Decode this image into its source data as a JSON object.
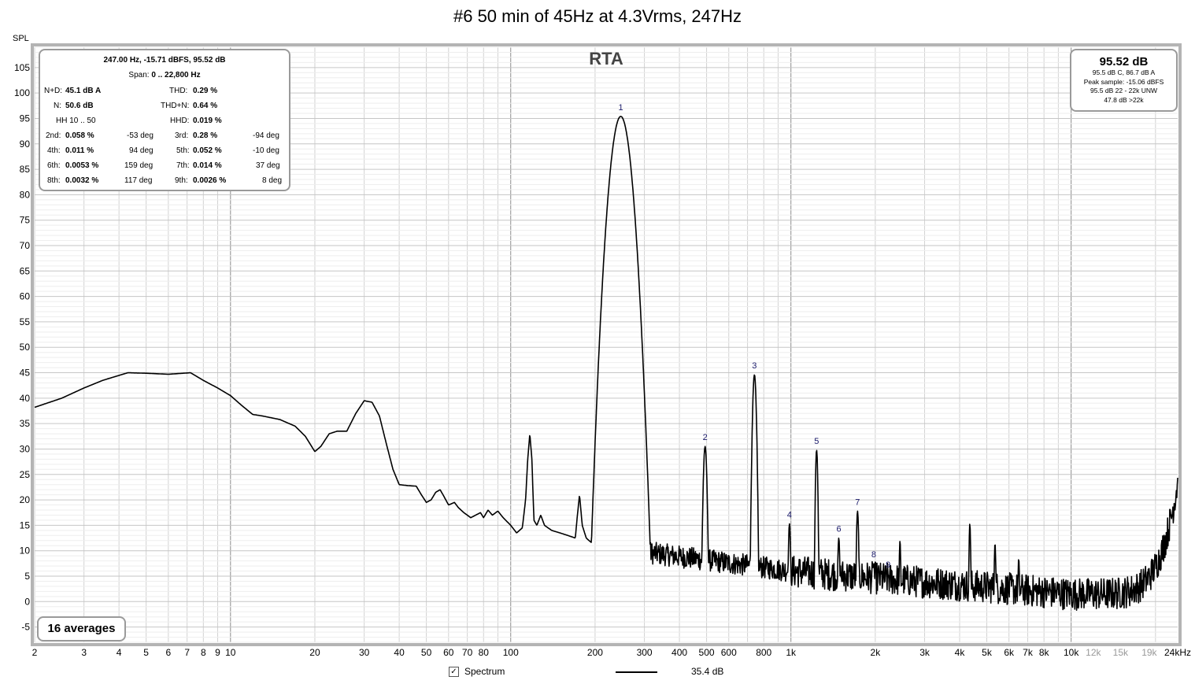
{
  "title": "#6 50 min of 45Hz at 4.3Vrms, 247Hz",
  "y_unit_label": "SPL",
  "rta_label": "RTA",
  "stats": {
    "header": "247.00 Hz, -15.71 dBFS, 95.52 dB",
    "span_label": "Span:",
    "span_value": "0 .. 22,800 Hz",
    "nd_label": "N+D:",
    "nd_value": "45.1 dB A",
    "thd_label": "THD:",
    "thd_value": "0.29 %",
    "n_label": "N:",
    "n_value": "50.6 dB",
    "thdn_label": "THD+N:",
    "thdn_value": "0.64 %",
    "hh_label": "HH 10 .. 50",
    "hhd_label": "HHD:",
    "hhd_value": "0.019 %",
    "harmonics": [
      {
        "label": "2nd:",
        "value": "0.058 %",
        "phase": "-53 deg"
      },
      {
        "label": "3rd:",
        "value": "0.28 %",
        "phase": "-94 deg"
      },
      {
        "label": "4th:",
        "value": "0.011 %",
        "phase": "94 deg"
      },
      {
        "label": "5th:",
        "value": "0.052 %",
        "phase": "-10 deg"
      },
      {
        "label": "6th:",
        "value": "0.0053 %",
        "phase": "159 deg"
      },
      {
        "label": "7th:",
        "value": "0.014 %",
        "phase": "37 deg"
      },
      {
        "label": "8th:",
        "value": "0.0032 %",
        "phase": "117 deg"
      },
      {
        "label": "9th:",
        "value": "0.0026 %",
        "phase": "8 deg"
      }
    ]
  },
  "level": {
    "main": "95.52 dB",
    "lines": [
      "95.5 dB C, 86.7 dB A",
      "Peak sample: -15.06 dBFS",
      "95.5 dB 22 - 22k UNW",
      "47.8 dB >22k"
    ]
  },
  "averages": "16 averages",
  "legend": {
    "checked": true,
    "checkmark": "✓",
    "name": "Spectrum",
    "value": "35.4 dB",
    "color": "#000000"
  },
  "chart_data": {
    "type": "line",
    "x_scale": "log",
    "xlim": [
      2,
      24000
    ],
    "ylim": [
      -8,
      109
    ],
    "x_ticks": [
      {
        "v": 2,
        "t": "2"
      },
      {
        "v": 3,
        "t": "3"
      },
      {
        "v": 4,
        "t": "4"
      },
      {
        "v": 5,
        "t": "5"
      },
      {
        "v": 6,
        "t": "6"
      },
      {
        "v": 7,
        "t": "7"
      },
      {
        "v": 8,
        "t": "8"
      },
      {
        "v": 9,
        "t": "9"
      },
      {
        "v": 10,
        "t": "10"
      },
      {
        "v": 20,
        "t": "20"
      },
      {
        "v": 30,
        "t": "30"
      },
      {
        "v": 40,
        "t": "40"
      },
      {
        "v": 50,
        "t": "50"
      },
      {
        "v": 60,
        "t": "60"
      },
      {
        "v": 70,
        "t": "70"
      },
      {
        "v": 80,
        "t": "80"
      },
      {
        "v": 100,
        "t": "100"
      },
      {
        "v": 200,
        "t": "200"
      },
      {
        "v": 300,
        "t": "300"
      },
      {
        "v": 400,
        "t": "400"
      },
      {
        "v": 500,
        "t": "500"
      },
      {
        "v": 600,
        "t": "600"
      },
      {
        "v": 800,
        "t": "800"
      },
      {
        "v": 1000,
        "t": "1k"
      },
      {
        "v": 2000,
        "t": "2k"
      },
      {
        "v": 3000,
        "t": "3k"
      },
      {
        "v": 4000,
        "t": "4k"
      },
      {
        "v": 5000,
        "t": "5k"
      },
      {
        "v": 6000,
        "t": "6k"
      },
      {
        "v": 7000,
        "t": "7k"
      },
      {
        "v": 8000,
        "t": "8k"
      },
      {
        "v": 10000,
        "t": "10k"
      },
      {
        "v": 12000,
        "t": "12k",
        "faint": true
      },
      {
        "v": 15000,
        "t": "15k",
        "faint": true
      },
      {
        "v": 19000,
        "t": "19k",
        "faint": true
      },
      {
        "v": 24000,
        "t": "24kHz"
      }
    ],
    "y_ticks": [
      -5,
      0,
      5,
      10,
      15,
      20,
      25,
      30,
      35,
      40,
      45,
      50,
      55,
      60,
      65,
      70,
      75,
      80,
      85,
      90,
      95,
      100,
      105
    ],
    "grid": true,
    "series": [
      {
        "name": "Spectrum",
        "color": "#000000",
        "smooth_points": [
          [
            2,
            38.2
          ],
          [
            2.5,
            40
          ],
          [
            3,
            42
          ],
          [
            3.5,
            43.5
          ],
          [
            4.3,
            45
          ],
          [
            5,
            44.9
          ],
          [
            6,
            44.7
          ],
          [
            7.2,
            45.0
          ],
          [
            8,
            43.5
          ],
          [
            9,
            42
          ],
          [
            10,
            40.5
          ],
          [
            11,
            38.5
          ],
          [
            12,
            36.8
          ],
          [
            13,
            36.5
          ],
          [
            15,
            35.8
          ],
          [
            17,
            34.5
          ],
          [
            18.5,
            32.5
          ],
          [
            20,
            29.5
          ],
          [
            21,
            30.5
          ],
          [
            22.5,
            33
          ],
          [
            24,
            33.5
          ],
          [
            26,
            33.5
          ],
          [
            28,
            37
          ],
          [
            30,
            39.5
          ],
          [
            32,
            39.2
          ],
          [
            34,
            36.5
          ],
          [
            36,
            31
          ],
          [
            38,
            26
          ],
          [
            40,
            23
          ],
          [
            43,
            22.8
          ],
          [
            46,
            22.7
          ],
          [
            48,
            21
          ],
          [
            50,
            19.5
          ],
          [
            52,
            20
          ],
          [
            54,
            21.5
          ],
          [
            56,
            22
          ],
          [
            58,
            20.5
          ],
          [
            60,
            19
          ],
          [
            63,
            19.5
          ],
          [
            65,
            18.5
          ],
          [
            68,
            17.5
          ],
          [
            70,
            17
          ],
          [
            72,
            16.5
          ],
          [
            75,
            17
          ],
          [
            78,
            17.5
          ],
          [
            80,
            16.5
          ],
          [
            83,
            18
          ],
          [
            86,
            17
          ],
          [
            90,
            17.8
          ],
          [
            94,
            16.5
          ],
          [
            100,
            15
          ],
          [
            105,
            13.5
          ],
          [
            110,
            14.5
          ],
          [
            113,
            20
          ],
          [
            115,
            28
          ],
          [
            117,
            33
          ],
          [
            119,
            28
          ],
          [
            121,
            16
          ],
          [
            124,
            15
          ],
          [
            128,
            17
          ],
          [
            132,
            15
          ],
          [
            140,
            14
          ],
          [
            150,
            13.5
          ],
          [
            160,
            13
          ],
          [
            170,
            12.5
          ],
          [
            173,
            17
          ],
          [
            176,
            21
          ],
          [
            180,
            15
          ],
          [
            186,
            12.5
          ],
          [
            195,
            11.5
          ],
          [
            210,
            13
          ],
          [
            225,
            11.5
          ],
          [
            235,
            10.5
          ]
        ],
        "peaks": [
          {
            "f": 247,
            "db": 95.4,
            "w": 0.028,
            "label": "1"
          },
          {
            "f": 494,
            "db": 30.5,
            "w": 0.006,
            "label": "2"
          },
          {
            "f": 741,
            "db": 44.6,
            "w": 0.006,
            "label": "3"
          },
          {
            "f": 988,
            "db": 15.3,
            "w": 0.004,
            "label": "4"
          },
          {
            "f": 1235,
            "db": 29.8,
            "w": 0.004,
            "label": "5"
          },
          {
            "f": 1482,
            "db": 12.5,
            "w": 0.004,
            "label": "6"
          },
          {
            "f": 1729,
            "db": 17.8,
            "w": 0.004,
            "label": "7"
          },
          {
            "f": 1976,
            "db": 7.5,
            "w": 0.004,
            "label": "8"
          },
          {
            "f": 2223,
            "db": 5.5,
            "w": 0.004,
            "label": "9"
          },
          {
            "f": 2450,
            "db": 12,
            "w": 0.003
          },
          {
            "f": 4350,
            "db": 15.3,
            "w": 0.003
          },
          {
            "f": 5350,
            "db": 11.5,
            "w": 0.003
          },
          {
            "f": 6500,
            "db": 8.5,
            "w": 0.003
          }
        ]
      }
    ]
  }
}
